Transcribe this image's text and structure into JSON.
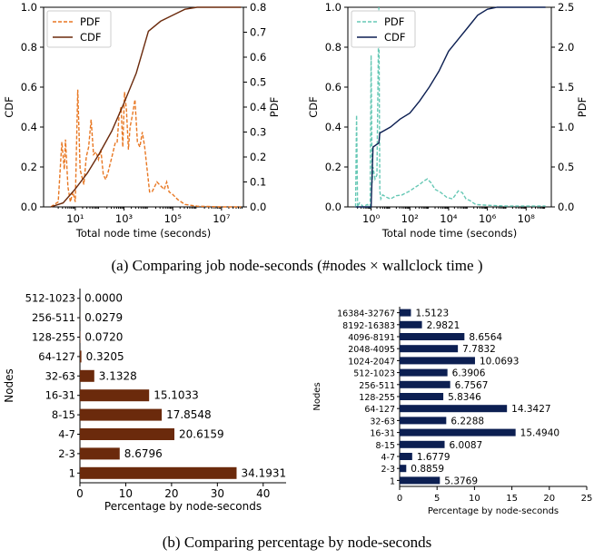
{
  "captions": {
    "a": "(a) Comparing job node-seconds (#nodes × wallclock time )",
    "b": "(b) Comparing percentage by node-seconds"
  },
  "chart_data": [
    {
      "type": "line",
      "panel": "top-left",
      "xlabel": "Total node time (seconds)",
      "ylabel": "CDF",
      "ylabel_right": "PDF",
      "x_scale": "log",
      "x_ticks": [
        "10¹",
        "10³",
        "10⁵",
        "10⁷"
      ],
      "y_ticks": [
        "0.0",
        "0.2",
        "0.4",
        "0.6",
        "0.8",
        "1.0"
      ],
      "y_right_ticks": [
        "0.0",
        "0.1",
        "0.2",
        "0.3",
        "0.4",
        "0.5",
        "0.6",
        "0.7",
        "0.8"
      ],
      "ylim": [
        0,
        1
      ],
      "y_right_lim": [
        0,
        0.8
      ],
      "legend_position": "top-left",
      "colors": {
        "pdf": "#e87722",
        "cdf": "#6b2a0c"
      },
      "series": [
        {
          "name": "PDF",
          "axis": "right",
          "style": "dashed",
          "x_log10": [
            0,
            0.3,
            0.45,
            0.55,
            0.6,
            0.7,
            0.8,
            0.9,
            1.0,
            1.1,
            1.2,
            1.35,
            1.45,
            1.55,
            1.65,
            1.75,
            1.85,
            1.95,
            2.05,
            2.15,
            2.25,
            2.35,
            2.45,
            2.55,
            2.65,
            2.72,
            2.8,
            2.88,
            2.95,
            3.02,
            3.1,
            3.18,
            3.25,
            3.35,
            3.45,
            3.55,
            3.65,
            3.75,
            3.85,
            3.95,
            4.05,
            4.15,
            4.25,
            4.35,
            4.45,
            4.55,
            4.65,
            4.75,
            4.85,
            5.0,
            5.2,
            5.5,
            6,
            7,
            7.8
          ],
          "y": [
            0.0,
            0.02,
            0.26,
            0.15,
            0.27,
            0.08,
            0.02,
            0.06,
            0.02,
            0.47,
            0.15,
            0.09,
            0.2,
            0.24,
            0.35,
            0.21,
            0.22,
            0.19,
            0.23,
            0.13,
            0.11,
            0.14,
            0.18,
            0.22,
            0.26,
            0.26,
            0.37,
            0.4,
            0.24,
            0.46,
            0.39,
            0.23,
            0.32,
            0.37,
            0.43,
            0.26,
            0.24,
            0.3,
            0.24,
            0.15,
            0.06,
            0.06,
            0.08,
            0.1,
            0.09,
            0.08,
            0.07,
            0.1,
            0.06,
            0.05,
            0.03,
            0.01,
            0.003,
            0.0,
            0.0
          ]
        },
        {
          "name": "CDF",
          "axis": "left",
          "style": "solid",
          "x_log10": [
            0,
            0.5,
            1.0,
            1.5,
            2.0,
            2.5,
            3.0,
            3.5,
            4.0,
            4.5,
            5.0,
            5.5,
            6.0,
            7.0,
            7.8
          ],
          "y": [
            0.0,
            0.02,
            0.09,
            0.17,
            0.27,
            0.38,
            0.52,
            0.67,
            0.88,
            0.93,
            0.96,
            0.99,
            1.0,
            1.0,
            1.0
          ]
        }
      ]
    },
    {
      "type": "line",
      "panel": "top-right",
      "xlabel": "Total node time (seconds)",
      "ylabel": "CDF",
      "ylabel_right": "PDF",
      "x_scale": "log",
      "x_ticks": [
        "10⁰",
        "10²",
        "10⁴",
        "10⁶",
        "10⁸"
      ],
      "y_ticks": [
        "0.0",
        "0.2",
        "0.4",
        "0.6",
        "0.8",
        "1.0"
      ],
      "y_right_ticks": [
        "0.0",
        "0.5",
        "1.0",
        "1.5",
        "2.0",
        "2.5"
      ],
      "ylim": [
        0,
        1
      ],
      "y_right_lim": [
        0,
        2.5
      ],
      "legend_position": "top-left",
      "colors": {
        "pdf": "#66c8b5",
        "cdf": "#0c1f52"
      },
      "series": [
        {
          "name": "PDF",
          "axis": "right",
          "style": "dashed",
          "x_log10": [
            -0.8,
            -0.75,
            -0.7,
            -0.6,
            -0.4,
            -0.2,
            -0.05,
            0.0,
            0.05,
            0.1,
            0.2,
            0.3,
            0.4,
            0.45,
            0.5,
            0.6,
            0.8,
            1.0,
            1.3,
            1.6,
            2.0,
            2.3,
            2.5,
            2.7,
            2.9,
            3.1,
            3.3,
            3.6,
            3.9,
            4.2,
            4.5,
            4.7,
            4.9,
            5.1,
            5.4,
            6.0,
            7.0,
            8.0,
            9.0
          ],
          "y": [
            0.0,
            1.15,
            0.0,
            0.05,
            0.0,
            0.03,
            0.0,
            1.9,
            0.3,
            0.5,
            0.35,
            0.4,
            2.5,
            0.2,
            0.1,
            0.15,
            0.12,
            0.1,
            0.14,
            0.15,
            0.2,
            0.25,
            0.28,
            0.32,
            0.35,
            0.3,
            0.22,
            0.18,
            0.12,
            0.1,
            0.2,
            0.18,
            0.1,
            0.08,
            0.03,
            0.02,
            0.01,
            0.01,
            0.01
          ]
        },
        {
          "name": "CDF",
          "axis": "left",
          "style": "solid",
          "x_log10": [
            -0.8,
            0.0,
            0.1,
            0.4,
            0.45,
            1.0,
            1.5,
            2.0,
            2.5,
            3.0,
            3.5,
            4.0,
            4.5,
            5.0,
            5.5,
            6.0,
            6.5,
            7.0,
            8.0,
            9.0
          ],
          "y": [
            0.0,
            0.0,
            0.3,
            0.32,
            0.37,
            0.4,
            0.44,
            0.47,
            0.53,
            0.6,
            0.68,
            0.78,
            0.84,
            0.9,
            0.96,
            0.99,
            1.0,
            1.0,
            1.0,
            1.0
          ]
        }
      ]
    },
    {
      "type": "bar",
      "orientation": "horizontal",
      "panel": "bottom-left",
      "xlabel": "Percentage by node-seconds",
      "ylabel": "Nodes",
      "xlim": [
        0,
        45
      ],
      "x_ticks": [
        "0",
        "10",
        "20",
        "30",
        "40"
      ],
      "color": "#6b2a0c",
      "categories": [
        "1",
        "2-3",
        "4-7",
        "8-15",
        "16-31",
        "32-63",
        "64-127",
        "128-255",
        "256-511",
        "512-1023"
      ],
      "values": [
        34.1931,
        8.6796,
        20.6159,
        17.8548,
        15.1033,
        3.1328,
        0.3205,
        0.072,
        0.0279,
        0.0
      ],
      "labels": [
        "34.1931",
        "8.6796",
        "20.6159",
        "17.8548",
        "15.1033",
        "3.1328",
        "0.3205",
        "0.0720",
        "0.0279",
        "0.0000"
      ]
    },
    {
      "type": "bar",
      "orientation": "horizontal",
      "panel": "bottom-right",
      "xlabel": "Percentage by node-seconds",
      "ylabel": "Nodes",
      "xlim": [
        0,
        25
      ],
      "x_ticks": [
        "0",
        "5",
        "10",
        "15",
        "20",
        "25"
      ],
      "color": "#0c1f52",
      "categories": [
        "1",
        "2-3",
        "4-7",
        "8-15",
        "16-31",
        "32-63",
        "64-127",
        "128-255",
        "256-511",
        "512-1023",
        "1024-2047",
        "2048-4095",
        "4096-8191",
        "8192-16383",
        "16384-32767"
      ],
      "values": [
        5.3769,
        0.8859,
        1.6779,
        6.0087,
        15.494,
        6.2288,
        14.3427,
        5.8346,
        6.7567,
        6.3906,
        10.0693,
        7.7832,
        8.6564,
        2.9821,
        1.5123
      ],
      "labels": [
        "5.3769",
        "0.8859",
        "1.6779",
        "6.0087",
        "15.4940",
        "6.2288",
        "14.3427",
        "5.8346",
        "6.7567",
        "6.3906",
        "10.0693",
        "7.7832",
        "8.6564",
        "2.9821",
        "1.5123"
      ]
    }
  ]
}
